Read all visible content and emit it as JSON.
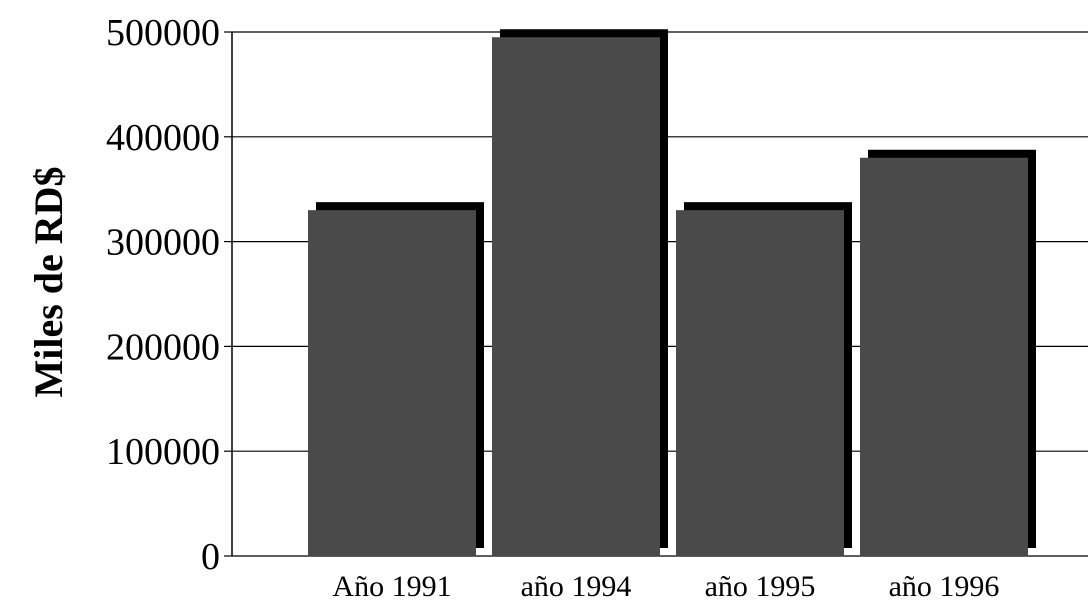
{
  "chart_data": {
    "type": "bar",
    "title": "",
    "xlabel": "",
    "ylabel": "Miles de RD$",
    "categories": [
      "Año 1991",
      "año 1994",
      "año 1995",
      "año 1996"
    ],
    "values": [
      330000,
      495000,
      330000,
      380000
    ],
    "ylim": [
      0,
      500000
    ],
    "yticks": [
      "0",
      "100000",
      "200000",
      "300000",
      "400000",
      "500000"
    ],
    "grid": true,
    "legend": "none"
  },
  "colors": {
    "bar": "#4a4a4a",
    "bar_shadow": "#000000",
    "grid": "#000000",
    "axis": "#000000"
  }
}
